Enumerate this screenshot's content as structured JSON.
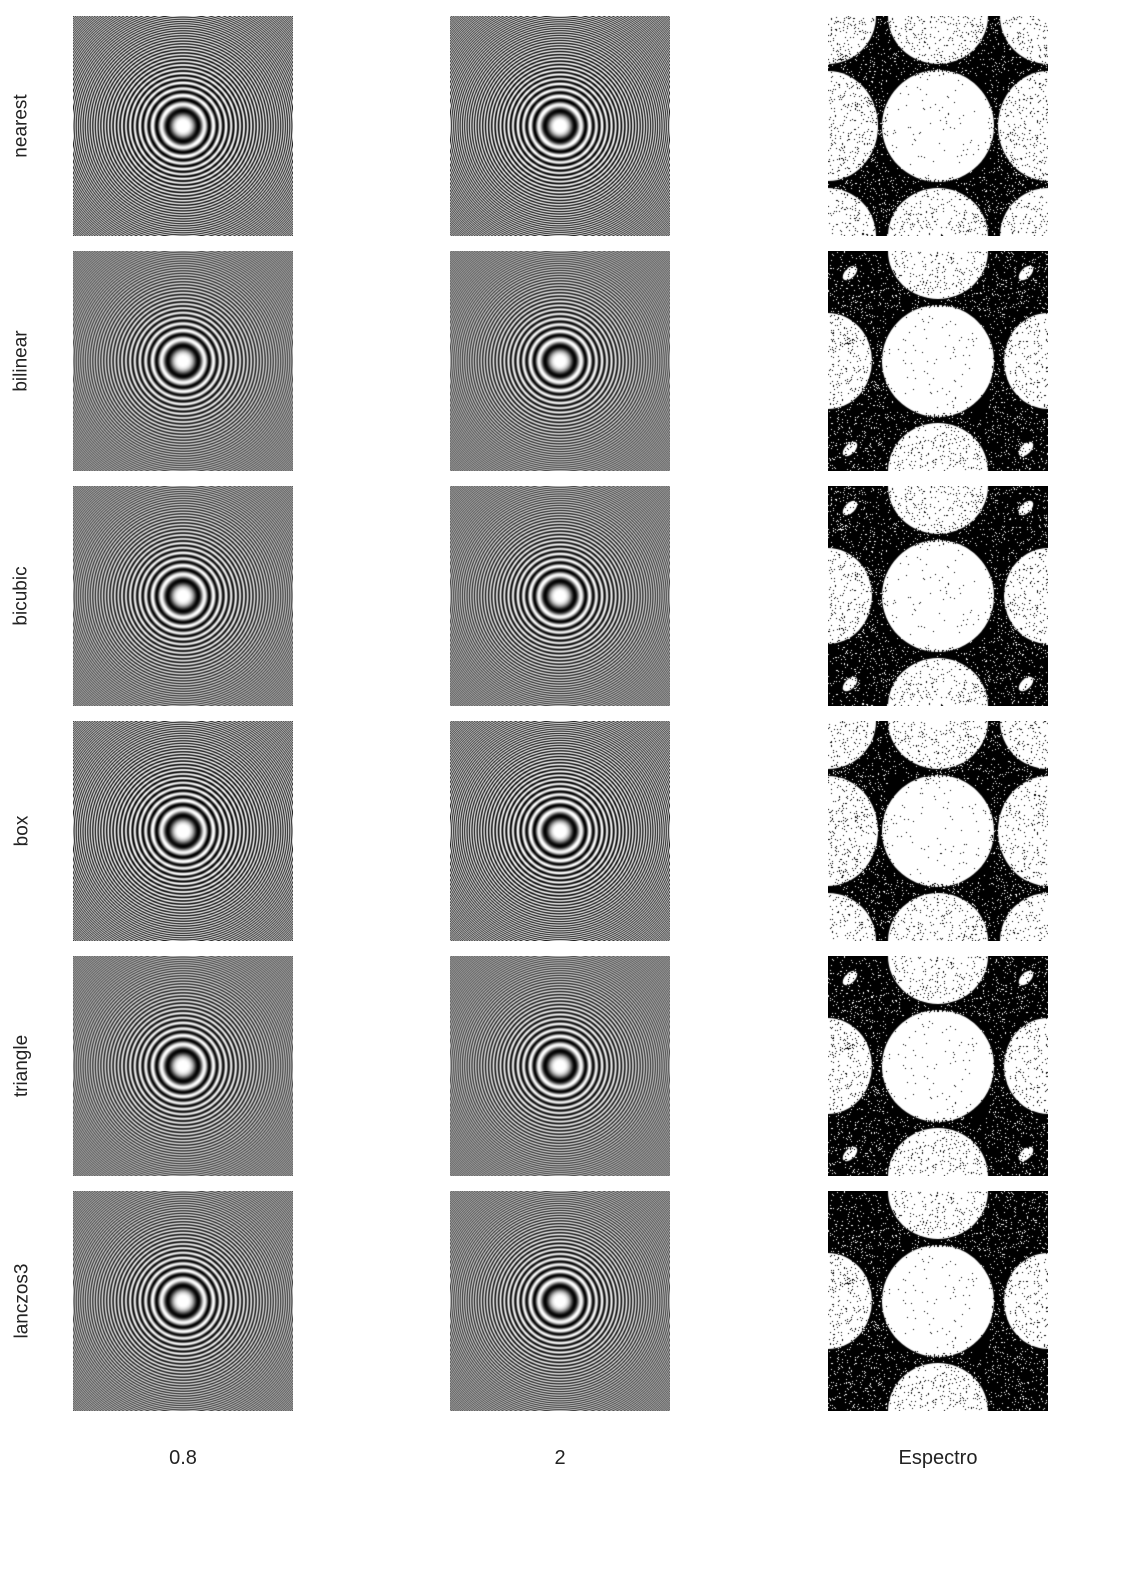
{
  "rows": [
    {
      "label": "nearest",
      "filter": "nearest"
    },
    {
      "label": "bilinear",
      "filter": "bilinear"
    },
    {
      "label": "bicubic",
      "filter": "bicubic"
    },
    {
      "label": "box",
      "filter": "box"
    },
    {
      "label": "triangle",
      "filter": "triangle"
    },
    {
      "label": "lanczos3",
      "filter": "lanczos3"
    }
  ],
  "columns": [
    {
      "label": "0.8",
      "kind": "image"
    },
    {
      "label": "2",
      "kind": "image"
    },
    {
      "label": "Espectro",
      "kind": "spectrum"
    }
  ],
  "colors": {
    "background": "#ffffff",
    "spectrum_fg": "#ffffff",
    "spectrum_bg": "#000000"
  }
}
